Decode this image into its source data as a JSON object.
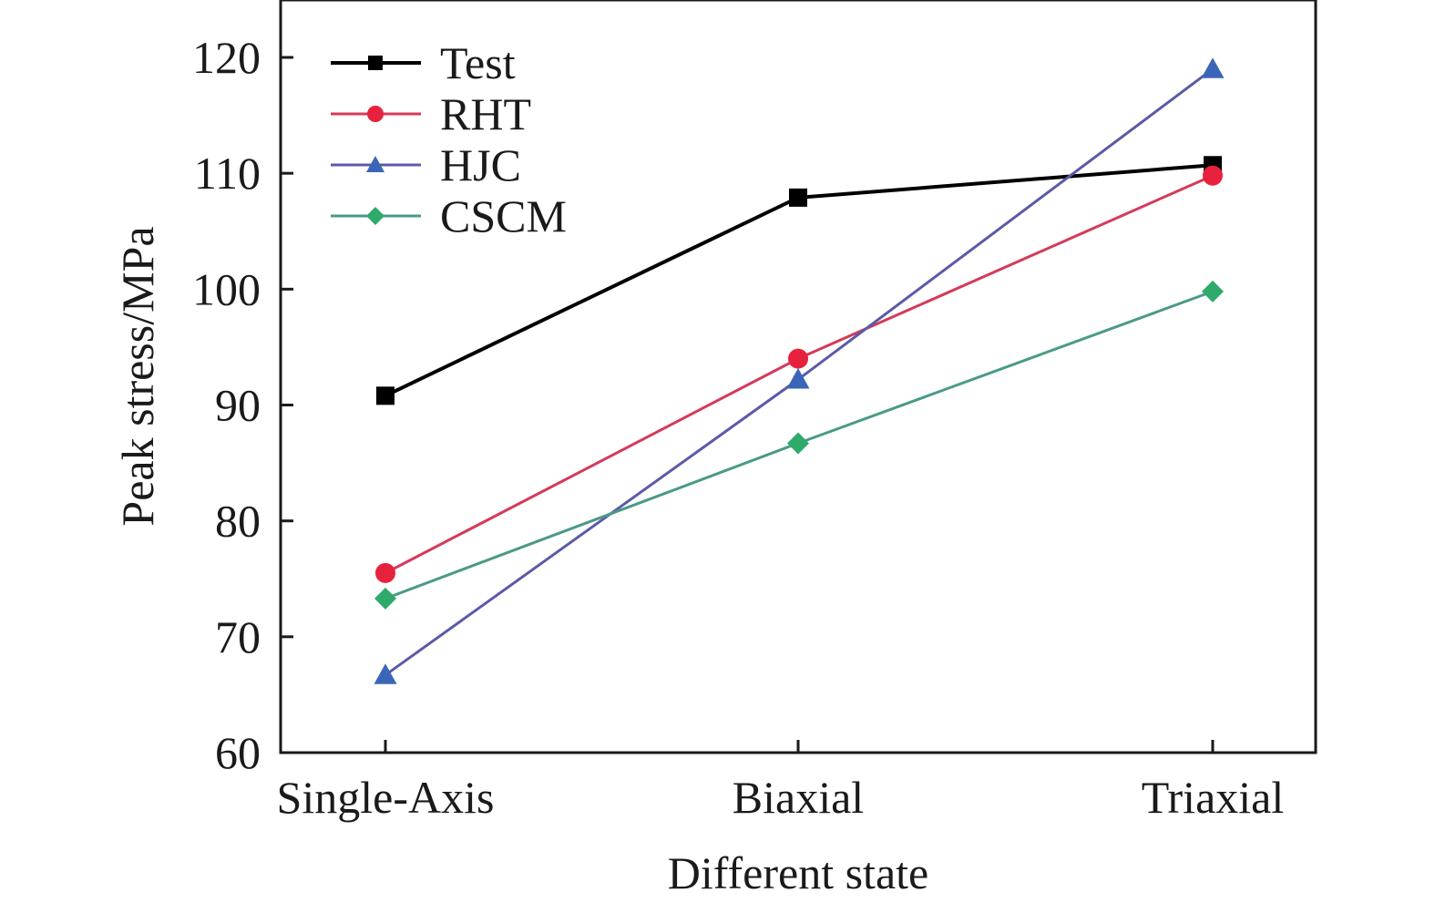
{
  "chart_data": {
    "type": "line",
    "xlabel": "Different state",
    "ylabel": "Peak stress/MPa",
    "categories": [
      "Single-Axis",
      "Biaxial",
      "Triaxial"
    ],
    "ylim": [
      60,
      125
    ],
    "yticks": [
      60,
      70,
      80,
      90,
      100,
      110,
      120
    ],
    "grid": false,
    "legend_position": "top-left",
    "series": [
      {
        "name": "Test",
        "values": [
          90.8,
          107.9,
          110.7
        ],
        "color": "#000000",
        "marker": "square"
      },
      {
        "name": "RHT",
        "values": [
          75.5,
          94.0,
          109.8
        ],
        "color": "#e8213d",
        "marker": "circle"
      },
      {
        "name": "HJC",
        "values": [
          66.7,
          92.2,
          119.0
        ],
        "color": "#3b66b8",
        "marker": "triangle"
      },
      {
        "name": "CSCM",
        "values": [
          73.3,
          86.7,
          99.8
        ],
        "color": "#2eaa6a",
        "marker": "diamond"
      }
    ],
    "line_colors": {
      "Test": "#000000",
      "RHT": "#d43a5a",
      "HJC": "#5b5aa8",
      "CSCM": "#4a9a88"
    }
  }
}
